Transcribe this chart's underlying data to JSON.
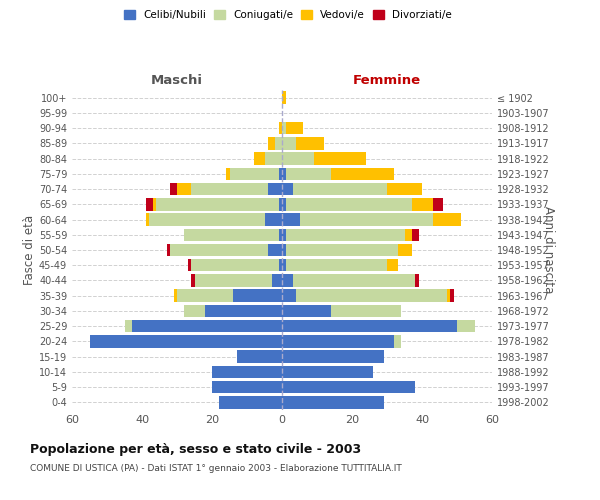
{
  "age_groups": [
    "0-4",
    "5-9",
    "10-14",
    "15-19",
    "20-24",
    "25-29",
    "30-34",
    "35-39",
    "40-44",
    "45-49",
    "50-54",
    "55-59",
    "60-64",
    "65-69",
    "70-74",
    "75-79",
    "80-84",
    "85-89",
    "90-94",
    "95-99",
    "100+"
  ],
  "birth_years": [
    "1998-2002",
    "1993-1997",
    "1988-1992",
    "1983-1987",
    "1978-1982",
    "1973-1977",
    "1968-1972",
    "1963-1967",
    "1958-1962",
    "1953-1957",
    "1948-1952",
    "1943-1947",
    "1938-1942",
    "1933-1937",
    "1928-1932",
    "1923-1927",
    "1918-1922",
    "1913-1917",
    "1908-1912",
    "1903-1907",
    "≤ 1902"
  ],
  "colors": {
    "celibi": "#4472c4",
    "coniugati": "#c5d9a0",
    "vedovi": "#ffc000",
    "divorziati": "#c0001a"
  },
  "males": {
    "celibi": [
      18,
      20,
      20,
      13,
      55,
      43,
      22,
      14,
      3,
      1,
      4,
      1,
      5,
      1,
      4,
      1,
      0,
      0,
      0,
      0,
      0
    ],
    "coniugati": [
      0,
      0,
      0,
      0,
      0,
      2,
      6,
      16,
      22,
      25,
      28,
      27,
      33,
      35,
      22,
      14,
      5,
      2,
      0,
      0,
      0
    ],
    "vedovi": [
      0,
      0,
      0,
      0,
      0,
      0,
      0,
      1,
      0,
      0,
      0,
      0,
      1,
      1,
      4,
      1,
      3,
      2,
      1,
      0,
      0
    ],
    "divorziati": [
      0,
      0,
      0,
      0,
      0,
      0,
      0,
      0,
      1,
      1,
      1,
      0,
      0,
      2,
      2,
      0,
      0,
      0,
      0,
      0,
      0
    ]
  },
  "females": {
    "celibi": [
      29,
      38,
      26,
      29,
      32,
      50,
      14,
      4,
      3,
      1,
      1,
      1,
      5,
      1,
      3,
      1,
      0,
      0,
      0,
      0,
      0
    ],
    "coniugati": [
      0,
      0,
      0,
      0,
      2,
      5,
      20,
      43,
      35,
      29,
      32,
      34,
      38,
      36,
      27,
      13,
      9,
      4,
      1,
      0,
      0
    ],
    "vedovi": [
      0,
      0,
      0,
      0,
      0,
      0,
      0,
      1,
      0,
      3,
      4,
      2,
      8,
      6,
      10,
      18,
      15,
      8,
      5,
      0,
      1
    ],
    "divorziati": [
      0,
      0,
      0,
      0,
      0,
      0,
      0,
      1,
      1,
      0,
      0,
      2,
      0,
      3,
      0,
      0,
      0,
      0,
      0,
      0,
      0
    ]
  },
  "title": "Popolazione per età, sesso e stato civile - 2003",
  "subtitle": "COMUNE DI USTICA (PA) - Dati ISTAT 1° gennaio 2003 - Elaborazione TUTTITALIA.IT",
  "xlabel_left": "Maschi",
  "xlabel_right": "Femmine",
  "ylabel_left": "Fasce di età",
  "ylabel_right": "Anni di nascita",
  "xlim": 60,
  "legend_labels": [
    "Celibi/Nubili",
    "Coniugati/e",
    "Vedovi/e",
    "Divorziati/e"
  ],
  "bg_color": "#ffffff",
  "grid_color": "#cccccc"
}
